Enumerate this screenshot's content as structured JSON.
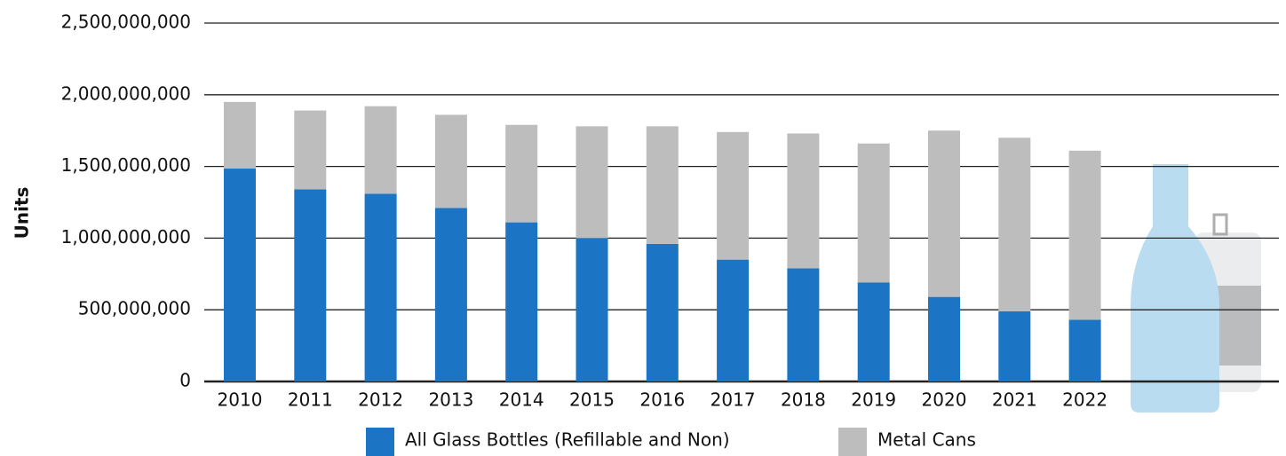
{
  "chart_data": {
    "type": "stacked_bar",
    "y_label": "Units",
    "categories": [
      "2010",
      "2011",
      "2012",
      "2013",
      "2014",
      "2015",
      "2016",
      "2017",
      "2018",
      "2019",
      "2020",
      "2021",
      "2022"
    ],
    "series": [
      {
        "name": "All Glass Bottles (Refillable and Non)",
        "color": "#1b75c4",
        "values": [
          1485000000,
          1340000000,
          1310000000,
          1210000000,
          1110000000,
          1000000000,
          960000000,
          850000000,
          790000000,
          690000000,
          590000000,
          490000000,
          430000000
        ]
      },
      {
        "name": "Metal Cans",
        "color": "#bdbdbd",
        "values": [
          465000000,
          550000000,
          610000000,
          650000000,
          680000000,
          780000000,
          820000000,
          890000000,
          940000000,
          970000000,
          1160000000,
          1210000000,
          1180000000
        ]
      }
    ],
    "ylim": [
      0,
      2500000000
    ],
    "yticks": [
      0,
      {
        "value": 500000000,
        "label": "500,000,000"
      },
      {
        "value": 1000000000,
        "label": "1,000,000,000"
      },
      {
        "value": 1500000000,
        "label": "1,500,000,000"
      },
      {
        "value": 2000000000,
        "label": "2,000,000,000"
      },
      {
        "value": 2500000000,
        "label": "2,500,000,000"
      }
    ],
    "grid": true
  }
}
